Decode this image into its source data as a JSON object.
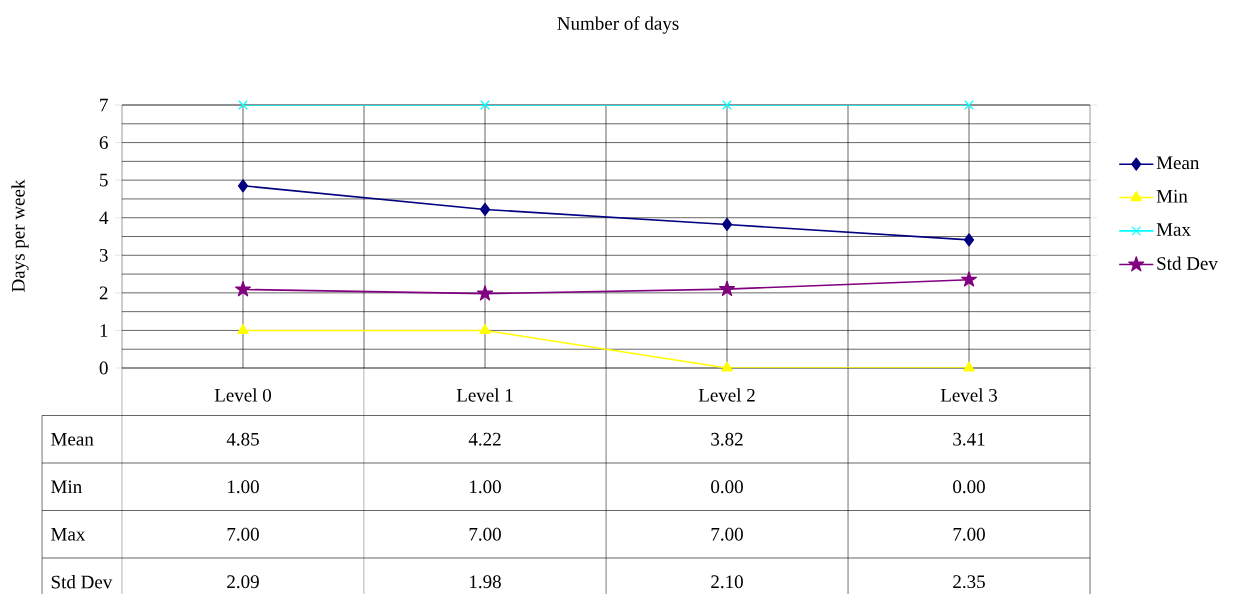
{
  "chart_data": {
    "type": "line",
    "title": "Number of days",
    "ylabel": "Days per week",
    "categories": [
      "Level 0",
      "Level 1",
      "Level 2",
      "Level 3"
    ],
    "series": [
      {
        "name": "Mean",
        "color": "#000080",
        "marker": "diamond",
        "values": [
          4.85,
          4.22,
          3.82,
          3.41
        ],
        "value_labels": [
          "4.85",
          "4.22",
          "3.82",
          "3.41"
        ]
      },
      {
        "name": "Min",
        "color": "#ffff00",
        "marker": "triangle",
        "values": [
          1,
          1,
          0,
          0
        ],
        "value_labels": [
          "1.00",
          "1.00",
          "0.00",
          "0.00"
        ]
      },
      {
        "name": "Max",
        "color": "#00ffff",
        "marker": "cross",
        "values": [
          7,
          7,
          7,
          7
        ],
        "value_labels": [
          "7.00",
          "7.00",
          "7.00",
          "7.00"
        ]
      },
      {
        "name": "Std Dev",
        "color": "#800080",
        "marker": "star",
        "values": [
          2.09,
          1.98,
          2.1,
          2.35
        ],
        "value_labels": [
          "2.09",
          "1.98",
          "2.10",
          "2.35"
        ]
      }
    ],
    "ylim": [
      0,
      7
    ],
    "yticks": [
      0,
      1,
      2,
      3,
      4,
      5,
      6,
      7
    ],
    "grid": true,
    "legend": "right"
  }
}
